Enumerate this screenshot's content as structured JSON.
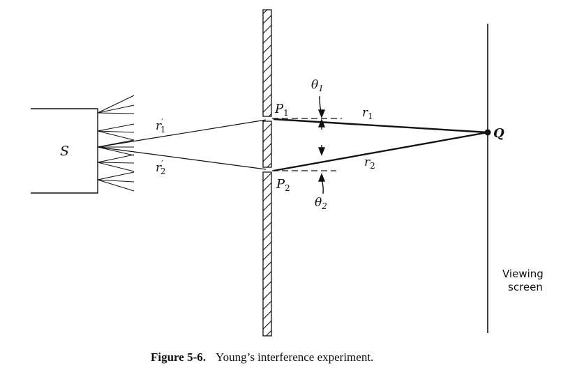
{
  "diagram": {
    "source_label": "S",
    "slit_top_label": "P",
    "slit_top_sub": "1",
    "slit_bottom_label": "P",
    "slit_bottom_sub": "2",
    "path_top_source": "r",
    "path_top_source_prime": "′",
    "path_top_source_sub": "1",
    "path_bottom_source": "r",
    "path_bottom_source_prime": "′",
    "path_bottom_source_sub": "2",
    "path_top_screen": "r",
    "path_top_screen_sub": "1",
    "path_bottom_screen": "r",
    "path_bottom_screen_sub": "2",
    "angle_top": "θ",
    "angle_top_sub": "1",
    "angle_bottom": "θ",
    "angle_bottom_sub": "2",
    "point_label": "Q",
    "screen_label_line1": "Viewing",
    "screen_label_line2": "screen"
  },
  "caption": {
    "number": "Figure 5-6.",
    "text": "Young’s interference experiment."
  }
}
